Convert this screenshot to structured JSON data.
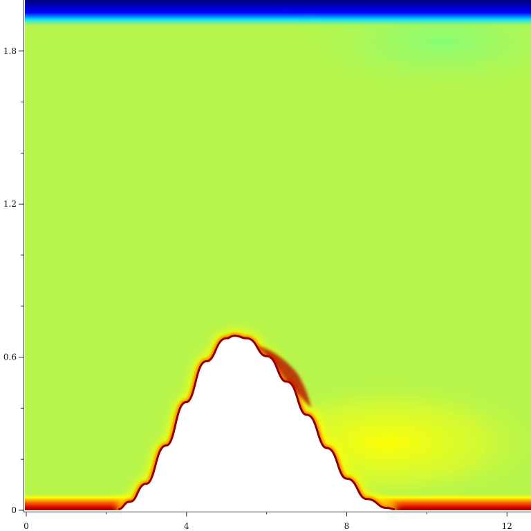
{
  "chart_data": {
    "type": "heatmap",
    "title": "",
    "xlabel": "",
    "ylabel": "",
    "xlim": [
      0,
      12.6
    ],
    "ylim": [
      0,
      2.0
    ],
    "x_ticks": [
      0,
      4,
      8,
      12
    ],
    "x_tick_labels": [
      "0",
      "4",
      "8",
      "12"
    ],
    "x_minor_ticks": [
      2,
      6,
      10
    ],
    "y_ticks": [
      0,
      0.6,
      1.2,
      1.8
    ],
    "y_tick_labels": [
      "0",
      "0.6",
      "1.2",
      "1.8"
    ],
    "y_minor_ticks": [
      0.2,
      0.4,
      0.8,
      1.0,
      1.4,
      1.6
    ],
    "grid": false,
    "legend": "none",
    "colormap": "jet",
    "colormap_stops": [
      "#00007f",
      "#0000ff",
      "#00ffff",
      "#7fff7f",
      "#ffff00",
      "#ff0000",
      "#7f0000"
    ],
    "background_field_color": "#b8f54a",
    "obstacle": {
      "shape": "hill",
      "color": "#ffffff",
      "profile_x": [
        2.3,
        2.6,
        3.0,
        3.5,
        4.0,
        4.5,
        5.0,
        5.2,
        5.5,
        6.0,
        6.5,
        7.0,
        7.5,
        8.0,
        8.5,
        9.0,
        9.2
      ],
      "profile_y": [
        0.0,
        0.03,
        0.1,
        0.25,
        0.42,
        0.58,
        0.67,
        0.68,
        0.67,
        0.6,
        0.5,
        0.37,
        0.24,
        0.12,
        0.04,
        0.005,
        0.0
      ]
    },
    "features": [
      {
        "region": "bottom boundary layer",
        "level": "high"
      },
      {
        "region": "hill surface shear layer",
        "level": "high"
      },
      {
        "region": "lee-side wake",
        "level": "elevated"
      },
      {
        "region": "top boundary",
        "level": "low"
      }
    ]
  }
}
